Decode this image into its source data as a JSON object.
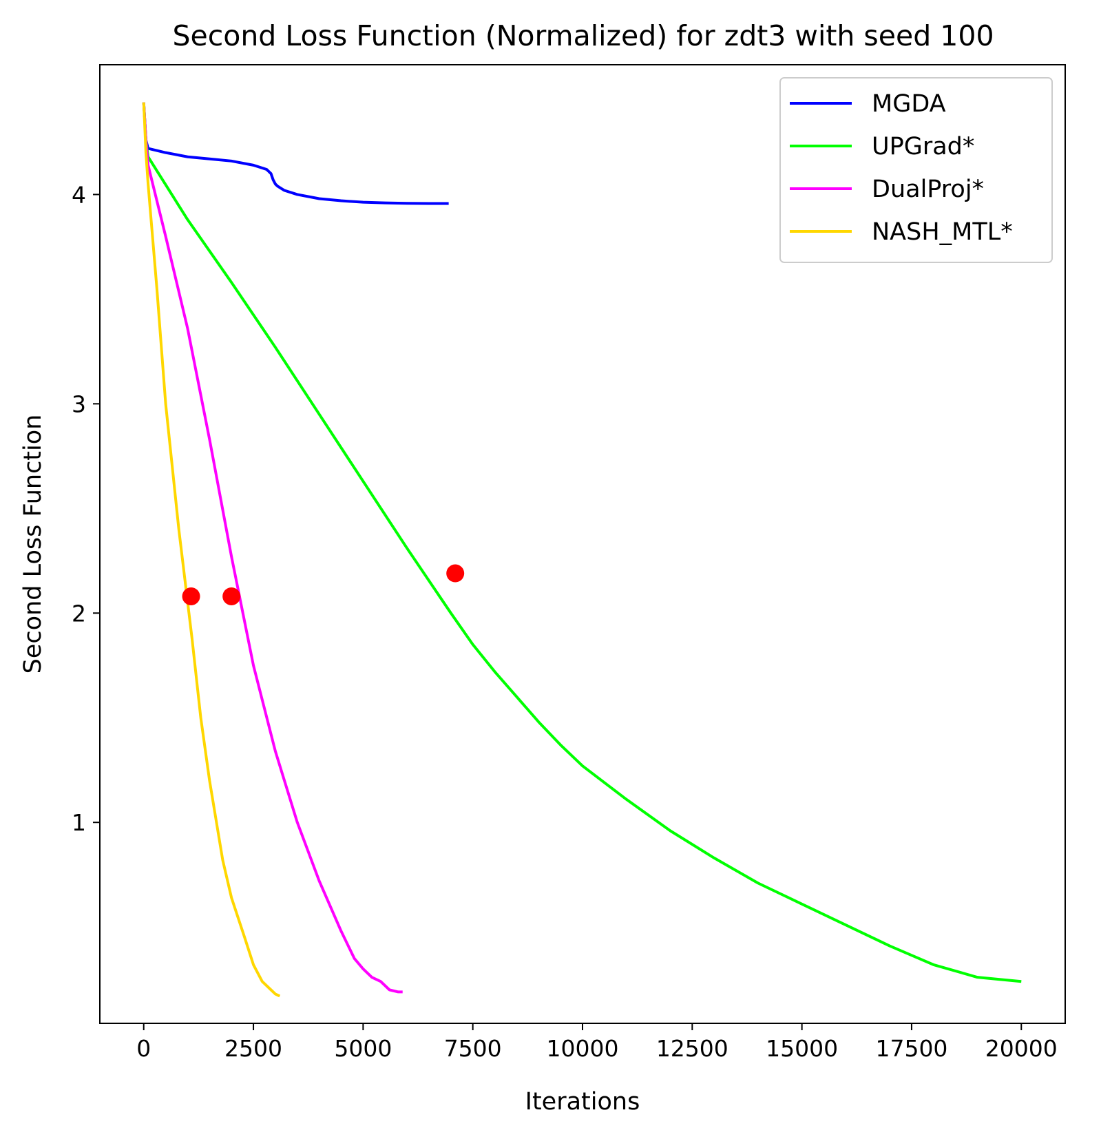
{
  "chart_data": {
    "type": "line",
    "title": "Second Loss Function (Normalized) for zdt3 with seed 100",
    "xlabel": "Iterations",
    "ylabel": "Second Loss Function",
    "xlim": [
      -1000,
      21000
    ],
    "ylim": [
      0.04,
      4.62
    ],
    "xticks": [
      0,
      2500,
      5000,
      7500,
      10000,
      12500,
      15000,
      17500,
      20000
    ],
    "xtick_labels": [
      "0",
      "2500",
      "5000",
      "7500",
      "10000",
      "12500",
      "15000",
      "17500",
      "20000"
    ],
    "yticks": [
      1,
      2,
      3,
      4
    ],
    "ytick_labels": [
      "1",
      "2",
      "3",
      "4"
    ],
    "grid": false,
    "legend_position": "top-right",
    "series": [
      {
        "name": "MGDA",
        "color": "#0000ff",
        "x": [
          0,
          50,
          100,
          500,
          1000,
          1500,
          2000,
          2500,
          2800,
          2900,
          2950,
          3000,
          3050,
          3200,
          3500,
          4000,
          4500,
          5000,
          5500,
          6000,
          6500,
          6950
        ],
        "y": [
          4.44,
          4.26,
          4.22,
          4.2,
          4.18,
          4.17,
          4.16,
          4.14,
          4.12,
          4.1,
          4.07,
          4.05,
          4.04,
          4.02,
          4.0,
          3.98,
          3.97,
          3.963,
          3.96,
          3.958,
          3.957,
          3.957
        ]
      },
      {
        "name": "UPGrad*",
        "color": "#00ff00",
        "x": [
          0,
          50,
          100,
          1000,
          2000,
          3000,
          4000,
          5000,
          6000,
          7000,
          7500,
          8000,
          8500,
          9000,
          9500,
          10000,
          11000,
          12000,
          13000,
          14000,
          15000,
          16000,
          17000,
          18000,
          19000,
          20000
        ],
        "y": [
          4.44,
          4.26,
          4.18,
          3.88,
          3.58,
          3.27,
          2.95,
          2.63,
          2.31,
          2.0,
          1.85,
          1.72,
          1.6,
          1.48,
          1.37,
          1.27,
          1.11,
          0.96,
          0.83,
          0.71,
          0.61,
          0.51,
          0.41,
          0.32,
          0.26,
          0.24
        ]
      },
      {
        "name": "DualProj*",
        "color": "#ff00ff",
        "x": [
          0,
          50,
          100,
          500,
          1000,
          1500,
          2000,
          2500,
          3000,
          3500,
          4000,
          4500,
          4800,
          5000,
          5200,
          5400,
          5600,
          5800,
          5900
        ],
        "y": [
          4.44,
          4.26,
          4.14,
          3.8,
          3.36,
          2.83,
          2.27,
          1.75,
          1.34,
          1.0,
          0.72,
          0.48,
          0.35,
          0.3,
          0.26,
          0.24,
          0.2,
          0.19,
          0.19
        ]
      },
      {
        "name": "NASH_MTL*",
        "color": "#ffd700",
        "x": [
          0,
          50,
          100,
          300,
          500,
          800,
          1100,
          1300,
          1500,
          1800,
          2000,
          2300,
          2500,
          2700,
          2900,
          3000,
          3100
        ],
        "y": [
          4.44,
          4.2,
          4.05,
          3.55,
          3.0,
          2.4,
          1.88,
          1.5,
          1.2,
          0.82,
          0.64,
          0.45,
          0.32,
          0.24,
          0.2,
          0.18,
          0.17
        ]
      }
    ],
    "markers": [
      {
        "x": 1080,
        "y": 2.08,
        "color": "#ff0000"
      },
      {
        "x": 2000,
        "y": 2.08,
        "color": "#ff0000"
      },
      {
        "x": 7100,
        "y": 2.19,
        "color": "#ff0000"
      }
    ]
  }
}
